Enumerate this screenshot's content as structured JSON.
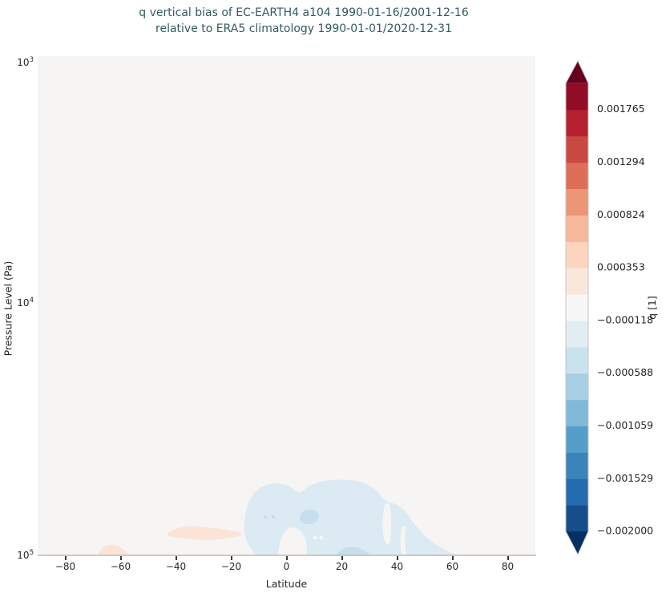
{
  "title": {
    "line1": "q vertical bias of EC-EARTH4 a104 1990-01-16/2001-12-16",
    "line2": "relative to ERA5 climatology 1990-01-01/2020-12-31"
  },
  "axes": {
    "xlabel": "Latitude",
    "ylabel": "Pressure Level (Pa)",
    "x_tick_labels": [
      "−80",
      "−60",
      "−40",
      "−20",
      "0",
      "20",
      "40",
      "60",
      "80"
    ],
    "x_tick_values": [
      -80,
      -60,
      -40,
      -20,
      0,
      20,
      40,
      60,
      80
    ],
    "y_tick_labels": [
      {
        "base": "10",
        "exp": "3"
      },
      {
        "base": "10",
        "exp": "4"
      },
      {
        "base": "10",
        "exp": "5"
      }
    ]
  },
  "colorbar": {
    "label": "q [1]",
    "tick_labels": [
      "0.001765",
      "0.001294",
      "0.000824",
      "0.000353",
      "−0.000118",
      "−0.000588",
      "−0.001059",
      "−0.001529",
      "−0.002000"
    ],
    "segments_bottom_to_top": [
      "#154e8b",
      "#256baf",
      "#3884bb",
      "#559ec9",
      "#80bad8",
      "#a7d0e4",
      "#cae1ee",
      "#e2edf3",
      "#f7f7f7",
      "#fae7dc",
      "#fcd5bf",
      "#f7b799",
      "#ed9676",
      "#dd6f59",
      "#ca4842",
      "#b6202f",
      "#910d26"
    ],
    "under_arrow_color": "#053061",
    "over_arrow_color": "#67001f",
    "outline_color": "#c6c6c6"
  },
  "colors": {
    "figure_bg": "#ffffff",
    "plot_bg": "#f6f5f4",
    "blob_blue_light": "#dceaf3",
    "blob_blue_mid": "#c7deee",
    "blob_orange": "#fbe4d6",
    "spine": "#c9c9c9",
    "tick_mark": "#3a3a3a",
    "tick_label": "#262626",
    "title_text": "#335b5e"
  },
  "chart_data": {
    "type": "heatmap",
    "subtype": "filled_contour_zonal_mean_bias",
    "title": "q vertical bias of EC-EARTH4 a104 1990-01-16/2001-12-16 relative to ERA5 climatology 1990-01-01/2020-12-31",
    "xlabel": "Latitude",
    "ylabel": "Pressure Level (Pa)",
    "x_range": [
      -90,
      90
    ],
    "x_ticks": [
      -80,
      -60,
      -40,
      -20,
      0,
      20,
      40,
      60,
      80
    ],
    "y_scale": "log",
    "y_range_pa": [
      1000,
      100000
    ],
    "y_ticks_pa": [
      1000,
      10000,
      100000
    ],
    "colormap": "RdBu_r",
    "extend": "both",
    "n_color_bands": 17,
    "level_min": -0.002,
    "level_max": 0.002,
    "level_step": 0.000235,
    "colorbar_label": "q [1]",
    "colorbar_tick_values": [
      0.001765,
      0.001294,
      0.000824,
      0.000353,
      -0.000118,
      -0.000588,
      -0.001059,
      -0.001529,
      -0.002
    ],
    "background_band": "−0.000118 to 0.000118 (near-zero bias over most of the domain)",
    "features": [
      {
        "band": "−0.000353 to −0.000118",
        "color": "#dceaf3",
        "lat_range": [
          -15,
          62
        ],
        "pressure_pa_range": [
          51000,
          100000
        ],
        "description": "broad weak negative (dry) bias blob in tropics and northern subtropics near the surface"
      },
      {
        "band": "−0.000588 to −0.000353",
        "color": "#c7deee",
        "lat_range": [
          4,
          13
        ],
        "pressure_pa_range": [
          66000,
          78000
        ],
        "description": "small stronger negative patch inside the main blob"
      },
      {
        "band": "−0.000588 to −0.000353",
        "color": "#c7deee",
        "lat_range": [
          18,
          31
        ],
        "pressure_pa_range": [
          95000,
          100000
        ],
        "description": "small stronger negative patch at the surface"
      },
      {
        "band": "0.000118 to 0.000353",
        "color": "#fbe4d6",
        "lat_range": [
          -43,
          -16
        ],
        "pressure_pa_range": [
          77000,
          88000
        ],
        "description": "weak positive (moist) bias lens in southern subtropics"
      },
      {
        "band": "0.000118 to 0.000353",
        "color": "#fbe4d6",
        "lat_range": [
          -66,
          -55
        ],
        "pressure_pa_range": [
          92000,
          100000
        ],
        "description": "small weak positive bias patch near the surface at southern high latitudes"
      }
    ]
  }
}
